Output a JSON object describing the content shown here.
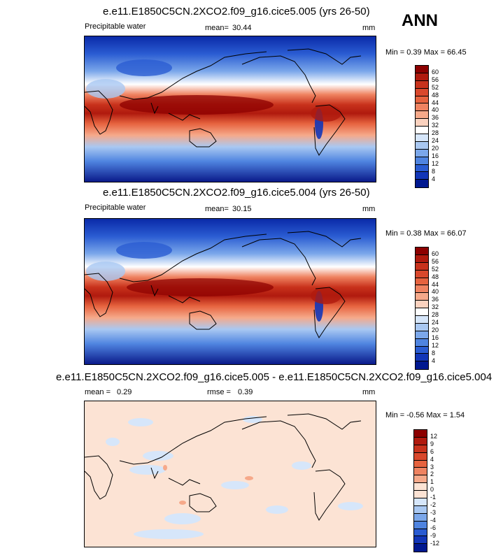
{
  "season": "ANN",
  "panels": [
    {
      "title": "e.e11.E1850C5CN.2XCO2.f09_g16.cice5.005 (yrs 26-50)",
      "variable": "Precipitable water",
      "mean_label": "mean=",
      "mean_value": "30.44",
      "units": "mm",
      "minmax": "Min =   0.39 Max =  66.45",
      "colorbar_labels": [
        "60",
        "56",
        "52",
        "48",
        "44",
        "40",
        "36",
        "32",
        "28",
        "24",
        "20",
        "16",
        "12",
        "8",
        "4"
      ],
      "colorbar_colors": [
        "#8c0000",
        "#b01a0e",
        "#c8321c",
        "#d9482c",
        "#e6633f",
        "#ef8361",
        "#f6a98a",
        "#fbd2bf",
        "#ffffff",
        "#d6e6fa",
        "#a9c8f2",
        "#7ba7ea",
        "#4f84e0",
        "#2a5cd2",
        "#1236b8",
        "#001890"
      ],
      "color_stops": [
        0,
        4,
        8,
        12,
        16,
        20,
        24,
        28,
        32,
        36,
        40,
        44,
        48,
        52,
        56,
        60
      ]
    },
    {
      "title": "e.e11.E1850C5CN.2XCO2.f09_g16.cice5.004 (yrs 26-50)",
      "variable": "Precipitable water",
      "mean_label": "mean=",
      "mean_value": "30.15",
      "units": "mm",
      "minmax": "Min =   0.38 Max =  66.07",
      "colorbar_labels": [
        "60",
        "56",
        "52",
        "48",
        "44",
        "40",
        "36",
        "32",
        "28",
        "24",
        "20",
        "16",
        "12",
        "8",
        "4"
      ],
      "colorbar_colors": [
        "#8c0000",
        "#b01a0e",
        "#c8321c",
        "#d9482c",
        "#e6633f",
        "#ef8361",
        "#f6a98a",
        "#fbd2bf",
        "#ffffff",
        "#d6e6fa",
        "#a9c8f2",
        "#7ba7ea",
        "#4f84e0",
        "#2a5cd2",
        "#1236b8",
        "#001890"
      ],
      "color_stops": [
        0,
        4,
        8,
        12,
        16,
        20,
        24,
        28,
        32,
        36,
        40,
        44,
        48,
        52,
        56,
        60
      ]
    },
    {
      "title": "e.e11.E1850C5CN.2XCO2.f09_g16.cice5.005 - e.e11.E1850C5CN.2XCO2.f09_g16.cice5.004",
      "mean_label": "mean =",
      "mean_value": "0.29",
      "rmse_label": "rmse =",
      "rmse_value": "0.39",
      "units": "mm",
      "minmax": "Min =  -0.56 Max =   1.54",
      "colorbar_labels": [
        "12",
        "9",
        "6",
        "4",
        "3",
        "2",
        "1",
        "0",
        "-1",
        "-2",
        "-3",
        "-4",
        "-6",
        "-9",
        "-12"
      ],
      "colorbar_colors": [
        "#8c0000",
        "#b01a0e",
        "#c8321c",
        "#d9482c",
        "#e6633f",
        "#ef8361",
        "#f6a98a",
        "#fce3d4",
        "#fce3d4",
        "#d6e6fa",
        "#a9c8f2",
        "#7ba7ea",
        "#4f84e0",
        "#2a5cd2",
        "#1236b8",
        "#001890"
      ]
    }
  ]
}
